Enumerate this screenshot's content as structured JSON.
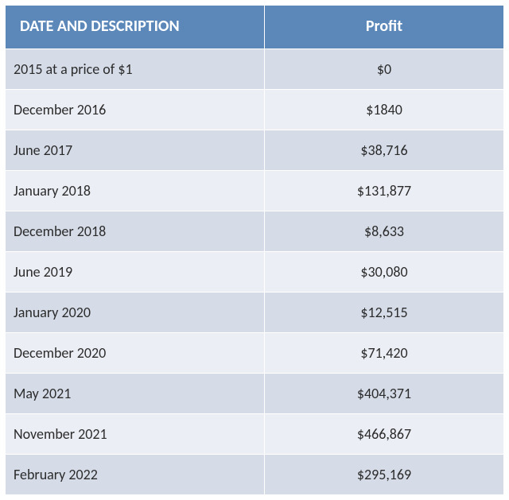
{
  "table": {
    "header_bg": "#5b87b9",
    "row_alt_bg_a": "#d5dce8",
    "row_alt_bg_b": "#ebeef5",
    "header_text_color": "#ffffff",
    "cell_text_color": "#2b2b2b",
    "columns": [
      {
        "label": "DATE AND DESCRIPTION",
        "align": "left"
      },
      {
        "label": "Profit",
        "align": "center"
      }
    ],
    "rows": [
      {
        "date": "2015 at a price of $1",
        "profit": "$0"
      },
      {
        "date": "December 2016",
        "profit": "$1840"
      },
      {
        "date": "June 2017",
        "profit": "$38,716"
      },
      {
        "date": "January 2018",
        "profit": "$131,877"
      },
      {
        "date": "December 2018",
        "profit": "$8,633"
      },
      {
        "date": "June 2019",
        "profit": "$30,080"
      },
      {
        "date": "January 2020",
        "profit": "$12,515"
      },
      {
        "date": "December 2020",
        "profit": "$71,420"
      },
      {
        "date": "May 2021",
        "profit": "$404,371"
      },
      {
        "date": "November 2021",
        "profit": "$466,867"
      },
      {
        "date": "February 2022",
        "profit": "$295,169"
      }
    ]
  }
}
